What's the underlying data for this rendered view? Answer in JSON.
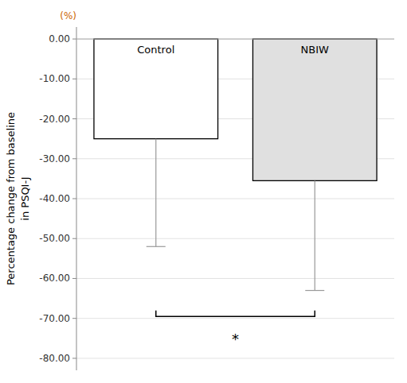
{
  "chart_data": {
    "type": "bar",
    "categories": [
      "Control",
      "NBIW"
    ],
    "values": [
      -25.0,
      -35.5
    ],
    "colors": [
      "#ffffff",
      "#e0e0e0"
    ],
    "error_lower": [
      -52.0,
      -63.0
    ],
    "ylim": [
      -83,
      3
    ],
    "yticks": [
      {
        "value": 0,
        "label": "0.00"
      },
      {
        "value": -10,
        "label": "-10.00"
      },
      {
        "value": -20,
        "label": "-20.00"
      },
      {
        "value": -30,
        "label": "-30.00"
      },
      {
        "value": -40,
        "label": "-40.00"
      },
      {
        "value": -50,
        "label": "-50.00"
      },
      {
        "value": -60,
        "label": "-60.00"
      },
      {
        "value": -70,
        "label": "-70.00"
      },
      {
        "value": -80,
        "label": "-80.00"
      }
    ],
    "ylabel": "Percentage change from baseline\nin PSQI-J",
    "unit_label": "(%)",
    "bracket": {
      "y": -69.5,
      "tick_height": 1.5,
      "text": "*",
      "text_y": -74
    },
    "grid": true
  }
}
